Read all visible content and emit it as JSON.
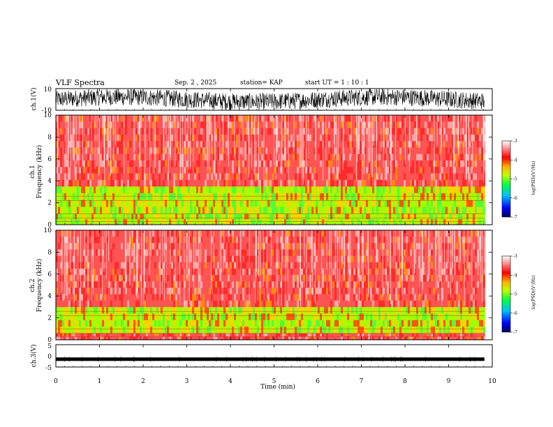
{
  "header": {
    "title": "VLF Spectra",
    "date": "Sep. 2 , 2025",
    "station": "station= KAP",
    "start": "start  UT =   1 : 10 : 1"
  },
  "chart_data": [
    {
      "type": "line",
      "name": "ch1-waveform",
      "ylabel": "ch.1(V)",
      "ylim": [
        -10,
        10
      ],
      "yticks": [
        "10",
        "-10"
      ],
      "x_range_min": [
        0,
        9.82
      ]
    },
    {
      "type": "heatmap",
      "name": "ch1-spectrogram",
      "ylabel_channel": "ch.1",
      "ylabel": "Frequency (kHz)",
      "ylim": [
        0,
        10
      ],
      "yticks": [
        "0",
        "2",
        "4",
        "6",
        "8",
        "10"
      ],
      "bands_khz": [
        {
          "from": 0.0,
          "to": 1.0,
          "level": "green-yellow"
        },
        {
          "from": 1.0,
          "to": 3.5,
          "level": "green-yellow"
        },
        {
          "from": 3.5,
          "to": 10.0,
          "level": "red"
        }
      ],
      "colorbar": {
        "label": "log(PSD)(V²/Hz)",
        "min": -7,
        "max": -3,
        "ticks": [
          "-3",
          "-4",
          "-5",
          "-6",
          "-7"
        ]
      }
    },
    {
      "type": "heatmap",
      "name": "ch2-spectrogram",
      "ylabel_channel": "ch.2",
      "ylabel": "Frequency (kHz)",
      "ylim": [
        0,
        10
      ],
      "yticks": [
        "0",
        "2",
        "4",
        "6",
        "8",
        "10"
      ],
      "bands_khz": [
        {
          "from": 0.0,
          "to": 0.6,
          "level": "red"
        },
        {
          "from": 0.6,
          "to": 3.0,
          "level": "green-yellow"
        },
        {
          "from": 3.0,
          "to": 10.0,
          "level": "red"
        }
      ],
      "colorbar": {
        "label": "log(PSD)(V²/Hz)",
        "min": -7,
        "max": -3,
        "ticks": [
          "-3",
          "-4",
          "-5",
          "-6",
          "-7"
        ]
      }
    },
    {
      "type": "line",
      "name": "ch3-waveform",
      "ylabel": "ch.3(V)",
      "ylim": [
        -5,
        5
      ],
      "yticks": [
        "5",
        "0",
        "-5"
      ],
      "level": -1.5
    }
  ],
  "xaxis": {
    "label": "Time (min)",
    "ticks": [
      "0",
      "1",
      "2",
      "3",
      "4",
      "5",
      "6",
      "7",
      "8",
      "9",
      "10"
    ],
    "xlim": [
      0,
      10
    ],
    "data_end": 9.82
  }
}
